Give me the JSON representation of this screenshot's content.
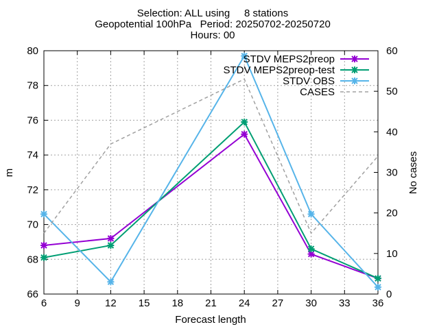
{
  "title_lines": [
    "Selection: ALL using     8 stations",
    "Geopotential 100hPa   Period: 20250702-20250720",
    "Hours: 00"
  ],
  "chart_data": {
    "type": "line",
    "xlabel": "Forecast length",
    "ylabel": "m",
    "y2label": "No cases",
    "xlim": [
      6,
      36
    ],
    "ylim": [
      66,
      80
    ],
    "y2lim": [
      0,
      60
    ],
    "x_ticks": [
      6,
      9,
      12,
      15,
      18,
      21,
      24,
      27,
      30,
      33,
      36
    ],
    "y_ticks": [
      66,
      68,
      70,
      72,
      74,
      76,
      78,
      80
    ],
    "y2_ticks": [
      0,
      10,
      20,
      30,
      40,
      50,
      60
    ],
    "grid": true,
    "legend_position": "top-right",
    "x": [
      6,
      12,
      24,
      30,
      36
    ],
    "series": [
      {
        "name": "STDV MEPS2preop",
        "values": [
          68.8,
          69.2,
          75.2,
          68.3,
          66.9
        ],
        "color": "#9400d3",
        "axis": "y1",
        "style": "solid",
        "marker": "x"
      },
      {
        "name": "STDV MEPS2preop-test",
        "values": [
          68.1,
          68.8,
          75.9,
          68.6,
          66.9
        ],
        "color": "#009e73",
        "axis": "y1",
        "style": "solid",
        "marker": "x"
      },
      {
        "name": "STDV OBS",
        "values": [
          70.6,
          66.7,
          79.7,
          70.6,
          66.4
        ],
        "color": "#56b4e9",
        "axis": "y1",
        "style": "solid",
        "marker": "x"
      },
      {
        "name": "CASES",
        "values": [
          15,
          37,
          53,
          15,
          34
        ],
        "color": "#a0a0a0",
        "axis": "y2",
        "style": "dashed",
        "marker": "none"
      }
    ]
  }
}
